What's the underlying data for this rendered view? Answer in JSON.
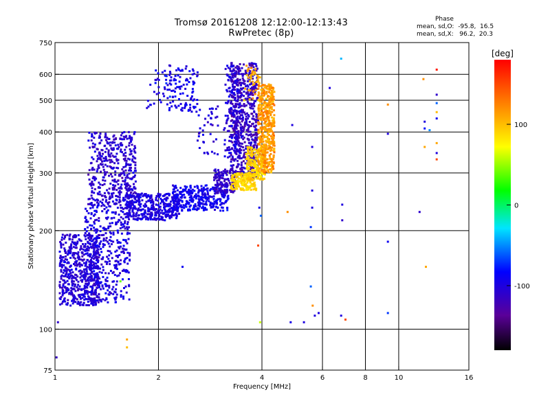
{
  "title_line1": "Tromsø 20161208 12:12:00-12:13:43",
  "title_line2": "RwPretec (8p)",
  "phase_info": {
    "heading": "Phase",
    "line_o": "mean, sd,O:  -95.8,  16.5",
    "line_x": "mean, sd,X:   96.2,  20.3"
  },
  "colorbar": {
    "label": "[deg]",
    "range": [
      -180,
      180
    ],
    "ticks": [
      "100",
      "0",
      "-100"
    ],
    "tick_values": [
      100,
      0,
      -100
    ]
  },
  "chart_data": {
    "type": "scatter",
    "title": "Tromsø 20161208 12:12:00-12:13:43",
    "subtitle": "RwPretec (8p)",
    "xlabel": "Frequency [MHz]",
    "ylabel": "Stationary phase Virtual Height [km]",
    "x_scale": "log2",
    "y_scale": "log",
    "xlim": [
      1,
      16
    ],
    "ylim": [
      75,
      750
    ],
    "x_ticks": [
      "1",
      "2",
      "4",
      "6",
      "8",
      "10",
      "16"
    ],
    "x_tick_values": [
      1,
      2,
      4,
      6,
      8,
      10,
      16
    ],
    "x_grid": [
      1,
      2,
      4,
      6,
      8,
      10,
      16
    ],
    "y_ticks": [
      "75",
      "100",
      "200",
      "300",
      "400",
      "500",
      "600",
      "750"
    ],
    "y_tick_values": [
      75,
      100,
      200,
      300,
      400,
      500,
      600,
      750
    ],
    "y_grid": [
      100,
      200,
      300,
      400,
      500,
      600
    ],
    "grid": true,
    "series": [
      {
        "name": "O",
        "mean_phase": -95.8,
        "sd_phase": 16.5
      },
      {
        "name": "X",
        "mean_phase": 96.2,
        "sd_phase": 20.3
      }
    ],
    "clusters": [
      {
        "x": [
          1.03,
          1.35
        ],
        "y": [
          118,
          195
        ],
        "n": 550,
        "phase": -105,
        "sd": 14
      },
      {
        "x": [
          1.22,
          1.65
        ],
        "y": [
          120,
          250
        ],
        "n": 450,
        "phase": -100,
        "sd": 14
      },
      {
        "x": [
          1.25,
          1.72
        ],
        "y": [
          240,
          400
        ],
        "n": 420,
        "phase": -108,
        "sd": 14
      },
      {
        "x": [
          1.6,
          2.3
        ],
        "y": [
          215,
          260
        ],
        "n": 380,
        "phase": -100,
        "sd": 12
      },
      {
        "x": [
          2.2,
          3.2
        ],
        "y": [
          230,
          275
        ],
        "n": 320,
        "phase": -92,
        "sd": 14
      },
      {
        "x": [
          2.9,
          3.35
        ],
        "y": [
          260,
          310
        ],
        "n": 140,
        "phase": -112,
        "sd": 12
      },
      {
        "x": [
          3.25,
          3.9
        ],
        "y": [
          290,
          650
        ],
        "n": 600,
        "phase": -115,
        "sd": 16
      },
      {
        "x": [
          3.1,
          3.5
        ],
        "y": [
          330,
          640
        ],
        "n": 160,
        "phase": -102,
        "sd": 14
      },
      {
        "x": [
          2.15,
          2.6
        ],
        "y": [
          460,
          640
        ],
        "n": 100,
        "phase": -95,
        "sd": 16
      },
      {
        "x": [
          1.85,
          2.2
        ],
        "y": [
          470,
          620
        ],
        "n": 40,
        "phase": -95,
        "sd": 16
      },
      {
        "x": [
          2.6,
          3.0
        ],
        "y": [
          340,
          480
        ],
        "n": 40,
        "phase": -100,
        "sd": 16
      },
      {
        "x": [
          3.25,
          3.85
        ],
        "y": [
          265,
          300
        ],
        "n": 160,
        "phase": 90,
        "sd": 10
      },
      {
        "x": [
          3.6,
          4.1
        ],
        "y": [
          285,
          360
        ],
        "n": 200,
        "phase": 92,
        "sd": 12
      },
      {
        "x": [
          3.9,
          4.35
        ],
        "y": [
          300,
          560
        ],
        "n": 480,
        "phase": 115,
        "sd": 18
      },
      {
        "x": [
          3.55,
          3.95
        ],
        "y": [
          500,
          640
        ],
        "n": 40,
        "phase": 108,
        "sd": 16
      }
    ],
    "isolated_points": [
      {
        "x": 1.02,
        "y": 105,
        "phase": -110
      },
      {
        "x": 1.01,
        "y": 82,
        "phase": -115
      },
      {
        "x": 1.62,
        "y": 93,
        "phase": 110
      },
      {
        "x": 1.62,
        "y": 88,
        "phase": 100
      },
      {
        "x": 1.55,
        "y": 140,
        "phase": 40
      },
      {
        "x": 2.35,
        "y": 155,
        "phase": -90
      },
      {
        "x": 3.95,
        "y": 105,
        "phase": 60
      },
      {
        "x": 3.9,
        "y": 180,
        "phase": 150
      },
      {
        "x": 3.93,
        "y": 235,
        "phase": -95
      },
      {
        "x": 3.97,
        "y": 222,
        "phase": -60
      },
      {
        "x": 4.75,
        "y": 228,
        "phase": 120
      },
      {
        "x": 4.9,
        "y": 420,
        "phase": -100
      },
      {
        "x": 4.85,
        "y": 105,
        "phase": -95
      },
      {
        "x": 5.3,
        "y": 105,
        "phase": -100
      },
      {
        "x": 5.55,
        "y": 205,
        "phase": -70
      },
      {
        "x": 5.6,
        "y": 235,
        "phase": -100
      },
      {
        "x": 5.6,
        "y": 265,
        "phase": -100
      },
      {
        "x": 5.6,
        "y": 360,
        "phase": -100
      },
      {
        "x": 5.55,
        "y": 135,
        "phase": -60
      },
      {
        "x": 5.62,
        "y": 118,
        "phase": 120
      },
      {
        "x": 5.7,
        "y": 110,
        "phase": -100
      },
      {
        "x": 5.85,
        "y": 112,
        "phase": -100
      },
      {
        "x": 6.3,
        "y": 545,
        "phase": -100
      },
      {
        "x": 6.8,
        "y": 670,
        "phase": -40
      },
      {
        "x": 6.85,
        "y": 240,
        "phase": -100
      },
      {
        "x": 6.85,
        "y": 215,
        "phase": -110
      },
      {
        "x": 6.8,
        "y": 110,
        "phase": -100
      },
      {
        "x": 7.0,
        "y": 107,
        "phase": 150
      },
      {
        "x": 9.3,
        "y": 485,
        "phase": 120
      },
      {
        "x": 9.3,
        "y": 395,
        "phase": -100
      },
      {
        "x": 9.3,
        "y": 185,
        "phase": -90
      },
      {
        "x": 9.3,
        "y": 112,
        "phase": -70
      },
      {
        "x": 11.5,
        "y": 228,
        "phase": -110
      },
      {
        "x": 11.8,
        "y": 580,
        "phase": 120
      },
      {
        "x": 11.9,
        "y": 430,
        "phase": -100
      },
      {
        "x": 11.9,
        "y": 360,
        "phase": 110
      },
      {
        "x": 11.9,
        "y": 410,
        "phase": -80
      },
      {
        "x": 12.0,
        "y": 155,
        "phase": 110
      },
      {
        "x": 12.3,
        "y": 405,
        "phase": -50
      },
      {
        "x": 12.9,
        "y": 620,
        "phase": 170
      },
      {
        "x": 12.9,
        "y": 520,
        "phase": -110
      },
      {
        "x": 12.9,
        "y": 490,
        "phase": -60
      },
      {
        "x": 12.9,
        "y": 460,
        "phase": 100
      },
      {
        "x": 12.9,
        "y": 440,
        "phase": -90
      },
      {
        "x": 12.9,
        "y": 370,
        "phase": 110
      },
      {
        "x": 12.9,
        "y": 345,
        "phase": -100
      },
      {
        "x": 12.9,
        "y": 330,
        "phase": 150
      }
    ]
  }
}
